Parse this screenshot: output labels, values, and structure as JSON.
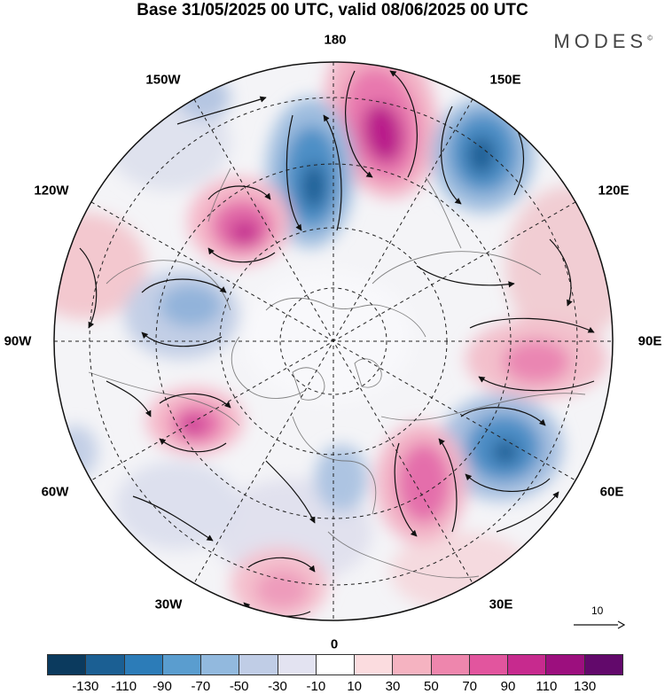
{
  "title": "Base 31/05/2025 00 UTC, valid 08/06/2025 00 UTC",
  "brand": "MODES",
  "brand_mark": "©",
  "longitude_labels": {
    "top": "180",
    "upper_left": "150W",
    "upper_right": "150E",
    "left_upper": "120W",
    "right_upper": "120E",
    "left": "90W",
    "right": "90E",
    "left_lower": "60W",
    "right_lower": "60E",
    "lower_left": "30W",
    "lower_right": "30E",
    "bottom": "0"
  },
  "reference_vector": {
    "label": "10"
  },
  "legend": {
    "colors": [
      "#0b3a5e",
      "#1b5f93",
      "#2c7cb8",
      "#5a9dcf",
      "#92b9de",
      "#c0cde6",
      "#e3e3f1",
      "#ffffff",
      "#fbdcdf",
      "#f5b3c1",
      "#ee86ad",
      "#e2559e",
      "#c72a8e",
      "#9c0f7e",
      "#62096b"
    ],
    "ticks": [
      "-130",
      "-110",
      "-90",
      "-70",
      "-50",
      "-30",
      "-10",
      "10",
      "30",
      "50",
      "70",
      "90",
      "110",
      "130"
    ]
  }
}
